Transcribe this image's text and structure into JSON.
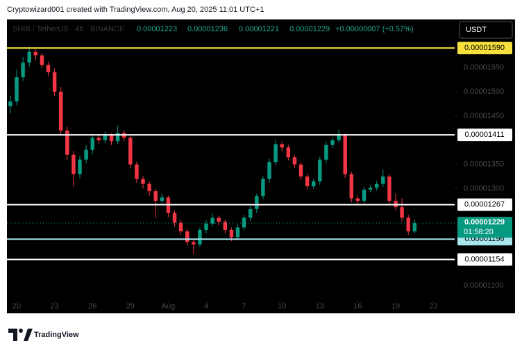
{
  "attribution": "Cryptowizard001 created with TradingView.com, Aug 20, 2025 11:01 UTC+1",
  "brand": "TradingView",
  "chart_data": {
    "type": "candlestick",
    "symbol": "SHIB / TetherUS · 4h · BINANCE",
    "ohlc_header": {
      "open": "0.00001223",
      "high": "0.00001236",
      "low": "0.00001221",
      "close": "0.00001229",
      "change": "+0.00000007 (+0.57%)"
    },
    "currency": "USDT",
    "x": [
      -0.5,
      0,
      0.5,
      1,
      1.5,
      2,
      2.5,
      3,
      3.5,
      4,
      4.5,
      5,
      5.5,
      6,
      6.5,
      7,
      7.5,
      8,
      8.5,
      9,
      9.5,
      10,
      10.5,
      11,
      11.5,
      12,
      12.5,
      13,
      13.5,
      14,
      14.5,
      15,
      15.5,
      16,
      16.5,
      17,
      17.5,
      18,
      18.5,
      19,
      19.5,
      20,
      20.5,
      21,
      21.5,
      22,
      22.5,
      23,
      23.5,
      24,
      24.5,
      25,
      25.5,
      26,
      26.5,
      27,
      27.5,
      28,
      28.5,
      29,
      29.5,
      30,
      30.5,
      31,
      31.5
    ],
    "open": [
      1.47e-05,
      1.48e-05,
      1.53e-05,
      1.56e-05,
      1.582e-05,
      1.575e-05,
      1.555e-05,
      1.54e-05,
      1.5e-05,
      1.42e-05,
      1.37e-05,
      1.33e-05,
      1.36e-05,
      1.38e-05,
      1.405e-05,
      1.4e-05,
      1.41e-05,
      1.398e-05,
      1.415e-05,
      1.405e-05,
      1.35e-05,
      1.32e-05,
      1.31e-05,
      1.295e-05,
      1.275e-05,
      1.282e-05,
      1.25e-05,
      1.23e-05,
      1.212e-05,
      1.19e-05,
      1.185e-05,
      1.215e-05,
      1.228e-05,
      1.24e-05,
      1.232e-05,
      1.215e-05,
      1.2e-05,
      1.22e-05,
      1.24e-05,
      1.258e-05,
      1.285e-05,
      1.32e-05,
      1.355e-05,
      1.392e-05,
      1.385e-05,
      1.365e-05,
      1.35e-05,
      1.325e-05,
      1.305e-05,
      1.315e-05,
      1.36e-05,
      1.39e-05,
      1.4e-05,
      1.41e-05,
      1.33e-05,
      1.28e-05,
      1.275e-05,
      1.298e-05,
      1.302e-05,
      1.31e-05,
      1.325e-05,
      1.275e-05,
      1.262e-05,
      1.24e-05,
      1.212e-05
    ],
    "high": [
      1.492e-05,
      1.545e-05,
      1.572e-05,
      1.593e-05,
      1.588e-05,
      1.58e-05,
      1.562e-05,
      1.548e-05,
      1.51e-05,
      1.428e-05,
      1.378e-05,
      1.368e-05,
      1.39e-05,
      1.412e-05,
      1.41e-05,
      1.418e-05,
      1.414e-05,
      1.43e-05,
      1.42e-05,
      1.41e-05,
      1.356e-05,
      1.326e-05,
      1.315e-05,
      1.3e-05,
      1.29e-05,
      1.286e-05,
      1.256e-05,
      1.236e-05,
      1.218e-05,
      1.195e-05,
      1.22e-05,
      1.235e-05,
      1.248e-05,
      1.245e-05,
      1.236e-05,
      1.22e-05,
      1.226e-05,
      1.246e-05,
      1.264e-05,
      1.29e-05,
      1.326e-05,
      1.362e-05,
      1.402e-05,
      1.398e-05,
      1.39e-05,
      1.37e-05,
      1.355e-05,
      1.33e-05,
      1.32e-05,
      1.366e-05,
      1.396e-05,
      1.406e-05,
      1.422e-05,
      1.414e-05,
      1.335e-05,
      1.286e-05,
      1.304e-05,
      1.308e-05,
      1.316e-05,
      1.34e-05,
      1.33e-05,
      1.29e-05,
      1.28e-05,
      1.246e-05,
      1.236e-05
    ],
    "low": [
      1.455e-05,
      1.472e-05,
      1.522e-05,
      1.552e-05,
      1.565e-05,
      1.548e-05,
      1.532e-05,
      1.492e-05,
      1.41e-05,
      1.36e-05,
      1.305e-05,
      1.322e-05,
      1.352e-05,
      1.372e-05,
      1.393e-05,
      1.394e-05,
      1.39e-05,
      1.392e-05,
      1.398e-05,
      1.342e-05,
      1.312e-05,
      1.3e-05,
      1.285e-05,
      1.24e-05,
      1.268e-05,
      1.242e-05,
      1.222e-05,
      1.205e-05,
      1.182e-05,
      1.165e-05,
      1.18e-05,
      1.208e-05,
      1.222e-05,
      1.225e-05,
      1.208e-05,
      1.192e-05,
      1.194e-05,
      1.214e-05,
      1.233e-05,
      1.25e-05,
      1.278e-05,
      1.312e-05,
      1.348e-05,
      1.378e-05,
      1.358e-05,
      1.342e-05,
      1.318e-05,
      1.298e-05,
      1.3e-05,
      1.308e-05,
      1.352e-05,
      1.384e-05,
      1.394e-05,
      1.322e-05,
      1.272e-05,
      1.268e-05,
      1.27e-05,
      1.292e-05,
      1.296e-05,
      1.304e-05,
      1.268e-05,
      1.255e-05,
      1.232e-05,
      1.205e-05,
      1.208e-05
    ],
    "close": [
      1.48e-05,
      1.53e-05,
      1.56e-05,
      1.582e-05,
      1.575e-05,
      1.555e-05,
      1.54e-05,
      1.5e-05,
      1.42e-05,
      1.37e-05,
      1.33e-05,
      1.36e-05,
      1.38e-05,
      1.405e-05,
      1.4e-05,
      1.41e-05,
      1.398e-05,
      1.415e-05,
      1.405e-05,
      1.35e-05,
      1.32e-05,
      1.31e-05,
      1.295e-05,
      1.275e-05,
      1.282e-05,
      1.25e-05,
      1.23e-05,
      1.212e-05,
      1.19e-05,
      1.185e-05,
      1.215e-05,
      1.228e-05,
      1.24e-05,
      1.232e-05,
      1.215e-05,
      1.2e-05,
      1.22e-05,
      1.24e-05,
      1.258e-05,
      1.285e-05,
      1.32e-05,
      1.355e-05,
      1.392e-05,
      1.385e-05,
      1.365e-05,
      1.35e-05,
      1.325e-05,
      1.305e-05,
      1.315e-05,
      1.36e-05,
      1.39e-05,
      1.4e-05,
      1.41e-05,
      1.33e-05,
      1.28e-05,
      1.275e-05,
      1.298e-05,
      1.302e-05,
      1.31e-05,
      1.325e-05,
      1.275e-05,
      1.262e-05,
      1.24e-05,
      1.212e-05,
      1.229e-05
    ],
    "up_color": "#089981",
    "down_color": "#f23645",
    "xlim": [
      -0.77,
      34.67
    ],
    "xticks": [
      {
        "value": 0,
        "label": "20"
      },
      {
        "value": 3,
        "label": "23"
      },
      {
        "value": 6,
        "label": "26"
      },
      {
        "value": 9,
        "label": "29"
      },
      {
        "value": 12,
        "label": "Aug"
      },
      {
        "value": 15,
        "label": "4"
      },
      {
        "value": 18,
        "label": "7"
      },
      {
        "value": 21,
        "label": "10"
      },
      {
        "value": 24,
        "label": "13"
      },
      {
        "value": 27,
        "label": "16"
      },
      {
        "value": 30,
        "label": "19"
      },
      {
        "value": 33,
        "label": "22"
      }
    ],
    "ylim": [
      1.043e-05,
      1.649e-05
    ],
    "yticks": [
      {
        "value": 1.55e-05,
        "label": "0.00001550"
      },
      {
        "value": 1.5e-05,
        "label": "0.00001500"
      },
      {
        "value": 1.45e-05,
        "label": "0.00001450"
      },
      {
        "value": 1.35e-05,
        "label": "0.00001350"
      },
      {
        "value": 1.3e-05,
        "label": "0.00001300"
      },
      {
        "value": 1.1e-05,
        "label": "0.00001100"
      }
    ],
    "levels": [
      {
        "value": 1.59e-05,
        "label": "0.00001590",
        "color": "#f7e03c"
      },
      {
        "value": 1.411e-05,
        "label": "0.00001411",
        "color": "#ffffff"
      },
      {
        "value": 1.267e-05,
        "label": "0.00001267",
        "color": "#ffffff"
      },
      {
        "value": 1.196e-05,
        "label": "0.00001196",
        "color": "#a8e6ee"
      },
      {
        "value": 1.154e-05,
        "label": "0.00001154",
        "color": "#ffffff"
      }
    ],
    "last_price": {
      "value": 1.229e-05,
      "label": "0.00001229",
      "countdown": "01:58:20",
      "color": "#089981"
    }
  }
}
